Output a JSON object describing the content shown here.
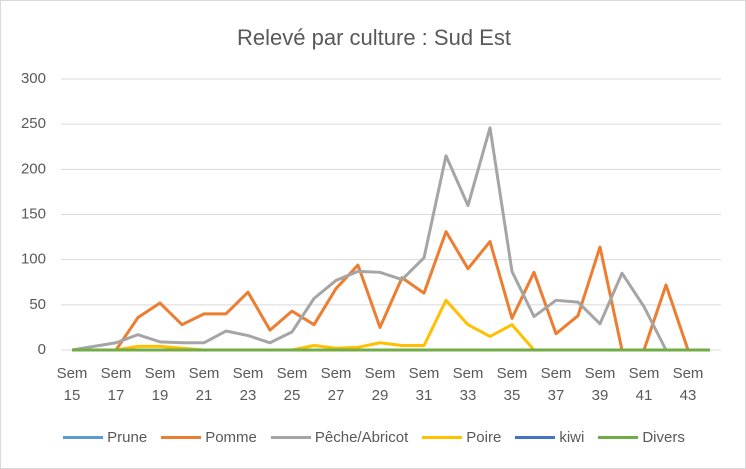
{
  "chart_data": {
    "type": "line",
    "title": "Relevé par culture : Sud Est",
    "categories": [
      "Sem 15",
      null,
      "Sem 17",
      null,
      "Sem 19",
      null,
      "Sem 21",
      null,
      "Sem 23",
      null,
      "Sem 25",
      null,
      "Sem 27",
      null,
      "Sem 29",
      null,
      "Sem 31",
      null,
      "Sem 33",
      null,
      "Sem 35",
      null,
      "Sem 37",
      null,
      "Sem 39",
      null,
      "Sem 41",
      null,
      "Sem 43",
      null
    ],
    "ylim": [
      0,
      300
    ],
    "yticks": [
      0,
      50,
      100,
      150,
      200,
      250,
      300
    ],
    "grid": true,
    "series": [
      {
        "name": "Prune",
        "color": "#5b9bd5",
        "values": [
          0,
          0,
          0,
          0,
          0,
          0,
          0,
          0,
          0,
          0,
          0,
          0,
          0,
          0,
          0,
          0,
          0,
          0,
          0,
          0,
          0,
          0,
          0,
          0,
          0,
          0,
          0,
          0,
          0,
          0
        ]
      },
      {
        "name": "Pomme",
        "color": "#ed7d31",
        "values": [
          0,
          0,
          0,
          36,
          52,
          28,
          40,
          40,
          64,
          22,
          43,
          28,
          68,
          94,
          25,
          80,
          63,
          131,
          90,
          120,
          35,
          86,
          18,
          38,
          114,
          0,
          0,
          72,
          0,
          null
        ]
      },
      {
        "name": "Pêche/Abricot",
        "color": "#a5a5a5",
        "values": [
          0,
          4,
          8,
          17,
          9,
          8,
          8,
          21,
          16,
          8,
          20,
          57,
          77,
          87,
          86,
          78,
          102,
          215,
          160,
          246,
          87,
          37,
          55,
          53,
          29,
          85,
          48,
          0,
          null,
          null
        ]
      },
      {
        "name": "Poire",
        "color": "#ffc000",
        "values": [
          0,
          0,
          0,
          4,
          4,
          2,
          0,
          0,
          0,
          0,
          0,
          5,
          2,
          3,
          8,
          5,
          5,
          55,
          28,
          15,
          28,
          0,
          0,
          0,
          0,
          0,
          0,
          0,
          0,
          null
        ]
      },
      {
        "name": "kiwi",
        "color": "#4472c4",
        "values": [
          0,
          0,
          0,
          0,
          0,
          0,
          0,
          0,
          0,
          0,
          0,
          0,
          0,
          0,
          0,
          0,
          0,
          0,
          0,
          0,
          0,
          0,
          0,
          0,
          0,
          0,
          0,
          0,
          0,
          0
        ]
      },
      {
        "name": "Divers",
        "color": "#70ad47",
        "values": [
          0,
          0,
          0,
          0,
          0,
          0,
          0,
          0,
          0,
          0,
          0,
          0,
          0,
          0,
          0,
          0,
          0,
          0,
          0,
          0,
          0,
          0,
          0,
          0,
          0,
          0,
          0,
          0,
          0,
          0
        ]
      }
    ]
  }
}
